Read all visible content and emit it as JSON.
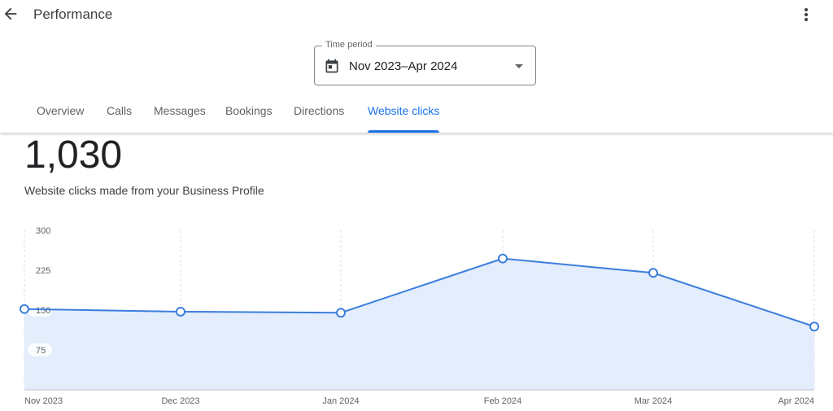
{
  "header": {
    "title": "Performance",
    "back_icon": "arrow-back-icon",
    "more_icon": "more-vert-icon"
  },
  "time_period": {
    "label": "Time period",
    "value": "Nov 2023–Apr 2024",
    "icon": "calendar-icon"
  },
  "tabs": [
    {
      "label": "Overview",
      "active": false
    },
    {
      "label": "Calls",
      "active": false
    },
    {
      "label": "Messages",
      "active": false
    },
    {
      "label": "Bookings",
      "active": false
    },
    {
      "label": "Directions",
      "active": false
    },
    {
      "label": "Website clicks",
      "active": true
    }
  ],
  "summary": {
    "total": "1,030",
    "description": "Website clicks made from your Business Profile"
  },
  "colors": {
    "accent": "#1a73e8",
    "line": "#3b7ddd",
    "fill": "#e3edfc"
  },
  "chart_data": {
    "type": "area",
    "categories": [
      "Nov 2023",
      "Dec 2023",
      "Jan 2024",
      "Feb 2024",
      "Mar 2024",
      "Apr 2024"
    ],
    "values": [
      152,
      147,
      145,
      247,
      220,
      119
    ],
    "y_ticks": [
      "300",
      "225",
      "150",
      "75"
    ],
    "ylim": [
      0,
      300
    ],
    "grid": "vertical-dashed"
  }
}
